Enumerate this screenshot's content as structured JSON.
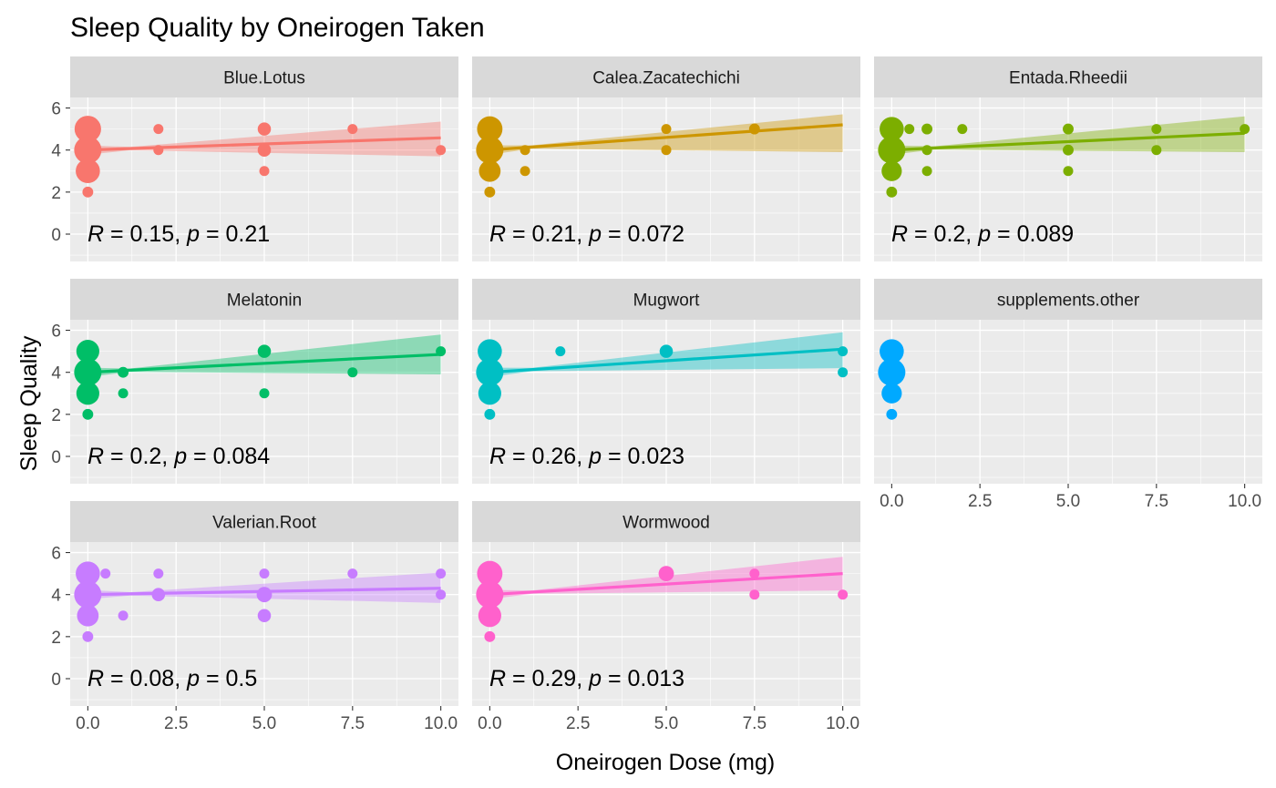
{
  "chart_data": {
    "type": "scatter",
    "title": "Sleep Quality by Oneirogen Taken",
    "xlabel": "Oneirogen Dose (mg)",
    "ylabel": "Sleep Quality",
    "xlim": [
      -0.5,
      10.5
    ],
    "ylim": [
      -1.3,
      6.5
    ],
    "x_ticks": [
      "0.0",
      "2.5",
      "5.0",
      "7.5",
      "10.0"
    ],
    "y_ticks": [
      "0",
      "2",
      "4",
      "6"
    ],
    "facet_layout": "3 columns, wrap",
    "grid": true,
    "legend": "none",
    "panels": [
      {
        "name": "Blue.Lotus",
        "color": "#F8766D",
        "stat": {
          "R": "0.15",
          "p": "0.21"
        },
        "fit": {
          "intercept": 4.0,
          "slope": 0.058,
          "ci_lo_end": 3.7,
          "ci_hi_end": 5.35
        },
        "points": [
          {
            "x": 0,
            "y": 5,
            "n": 12
          },
          {
            "x": 0,
            "y": 4,
            "n": 14
          },
          {
            "x": 0,
            "y": 3,
            "n": 10
          },
          {
            "x": 0,
            "y": 2,
            "n": 2
          },
          {
            "x": 2,
            "y": 5,
            "n": 1
          },
          {
            "x": 2,
            "y": 4,
            "n": 1
          },
          {
            "x": 5,
            "y": 5,
            "n": 3
          },
          {
            "x": 5,
            "y": 4,
            "n": 3
          },
          {
            "x": 5,
            "y": 3,
            "n": 1
          },
          {
            "x": 7.5,
            "y": 5,
            "n": 1
          },
          {
            "x": 10,
            "y": 4,
            "n": 1
          }
        ]
      },
      {
        "name": "Calea.Zacatechichi",
        "color": "#CD9600",
        "stat": {
          "R": "0.21",
          "p": "0.072"
        },
        "fit": {
          "intercept": 4.0,
          "slope": 0.12,
          "ci_lo_end": 3.9,
          "ci_hi_end": 5.7
        },
        "points": [
          {
            "x": 0,
            "y": 5,
            "n": 11
          },
          {
            "x": 0,
            "y": 4,
            "n": 13
          },
          {
            "x": 0,
            "y": 3,
            "n": 8
          },
          {
            "x": 0,
            "y": 2,
            "n": 2
          },
          {
            "x": 1,
            "y": 4,
            "n": 1
          },
          {
            "x": 1,
            "y": 3,
            "n": 1
          },
          {
            "x": 5,
            "y": 5,
            "n": 1
          },
          {
            "x": 5,
            "y": 4,
            "n": 1
          },
          {
            "x": 7.5,
            "y": 5,
            "n": 2
          }
        ]
      },
      {
        "name": "Entada.Rheedii",
        "color": "#7CAE00",
        "stat": {
          "R": "0.2",
          "p": "0.089"
        },
        "fit": {
          "intercept": 4.0,
          "slope": 0.08,
          "ci_lo_end": 3.9,
          "ci_hi_end": 5.6
        },
        "points": [
          {
            "x": 0,
            "y": 5,
            "n": 10
          },
          {
            "x": 0,
            "y": 4,
            "n": 14
          },
          {
            "x": 0,
            "y": 3,
            "n": 7
          },
          {
            "x": 0,
            "y": 2,
            "n": 2
          },
          {
            "x": 0.5,
            "y": 5,
            "n": 1
          },
          {
            "x": 1,
            "y": 5,
            "n": 2
          },
          {
            "x": 1,
            "y": 4,
            "n": 1
          },
          {
            "x": 1,
            "y": 3,
            "n": 1
          },
          {
            "x": 2,
            "y": 5,
            "n": 1
          },
          {
            "x": 5,
            "y": 5,
            "n": 2
          },
          {
            "x": 5,
            "y": 4,
            "n": 2
          },
          {
            "x": 5,
            "y": 3,
            "n": 1
          },
          {
            "x": 7.5,
            "y": 5,
            "n": 1
          },
          {
            "x": 7.5,
            "y": 4,
            "n": 1
          },
          {
            "x": 10,
            "y": 5,
            "n": 1
          }
        ]
      },
      {
        "name": "Melatonin",
        "color": "#00BE67",
        "stat": {
          "R": "0.2",
          "p": "0.084"
        },
        "fit": {
          "intercept": 4.0,
          "slope": 0.085,
          "ci_lo_end": 3.9,
          "ci_hi_end": 5.8
        },
        "points": [
          {
            "x": 0,
            "y": 5,
            "n": 9
          },
          {
            "x": 0,
            "y": 4,
            "n": 15
          },
          {
            "x": 0,
            "y": 3,
            "n": 9
          },
          {
            "x": 0,
            "y": 2,
            "n": 2
          },
          {
            "x": 1,
            "y": 4,
            "n": 2
          },
          {
            "x": 1,
            "y": 3,
            "n": 1
          },
          {
            "x": 5,
            "y": 5,
            "n": 3
          },
          {
            "x": 5,
            "y": 3,
            "n": 1
          },
          {
            "x": 7.5,
            "y": 4,
            "n": 1
          },
          {
            "x": 10,
            "y": 5,
            "n": 1
          }
        ]
      },
      {
        "name": "Mugwort",
        "color": "#00BFC4",
        "stat": {
          "R": "0.26",
          "p": "0.023"
        },
        "fit": {
          "intercept": 4.0,
          "slope": 0.11,
          "ci_lo_end": 4.2,
          "ci_hi_end": 5.9
        },
        "points": [
          {
            "x": 0,
            "y": 5,
            "n": 10
          },
          {
            "x": 0,
            "y": 4,
            "n": 15
          },
          {
            "x": 0,
            "y": 3,
            "n": 9
          },
          {
            "x": 0,
            "y": 2,
            "n": 2
          },
          {
            "x": 2,
            "y": 5,
            "n": 1
          },
          {
            "x": 5,
            "y": 5,
            "n": 3
          },
          {
            "x": 10,
            "y": 5,
            "n": 1
          },
          {
            "x": 10,
            "y": 4,
            "n": 1
          }
        ]
      },
      {
        "name": "supplements.other",
        "color": "#00A9FF",
        "stat": null,
        "fit": null,
        "points": [
          {
            "x": 0,
            "y": 5,
            "n": 10
          },
          {
            "x": 0,
            "y": 4,
            "n": 14
          },
          {
            "x": 0,
            "y": 3,
            "n": 7
          },
          {
            "x": 0,
            "y": 2,
            "n": 2
          }
        ]
      },
      {
        "name": "Valerian.Root",
        "color": "#C77CFF",
        "stat": {
          "R": "0.08",
          "p": "0.5"
        },
        "fit": {
          "intercept": 4.0,
          "slope": 0.03,
          "ci_lo_end": 3.6,
          "ci_hi_end": 5.05
        },
        "points": [
          {
            "x": 0,
            "y": 5,
            "n": 10
          },
          {
            "x": 0,
            "y": 4,
            "n": 13
          },
          {
            "x": 0,
            "y": 3,
            "n": 8
          },
          {
            "x": 0,
            "y": 2,
            "n": 2
          },
          {
            "x": 0.5,
            "y": 5,
            "n": 1
          },
          {
            "x": 1,
            "y": 3,
            "n": 1
          },
          {
            "x": 2,
            "y": 5,
            "n": 1
          },
          {
            "x": 2,
            "y": 4,
            "n": 3
          },
          {
            "x": 5,
            "y": 5,
            "n": 1
          },
          {
            "x": 5,
            "y": 4,
            "n": 4
          },
          {
            "x": 5,
            "y": 3,
            "n": 3
          },
          {
            "x": 7.5,
            "y": 5,
            "n": 1
          },
          {
            "x": 10,
            "y": 5,
            "n": 1
          },
          {
            "x": 10,
            "y": 4,
            "n": 1
          }
        ]
      },
      {
        "name": "Wormwood",
        "color": "#FF61CC",
        "stat": {
          "R": "0.29",
          "p": "0.013"
        },
        "fit": {
          "intercept": 4.0,
          "slope": 0.1,
          "ci_lo_end": 4.2,
          "ci_hi_end": 5.8
        },
        "points": [
          {
            "x": 0,
            "y": 5,
            "n": 11
          },
          {
            "x": 0,
            "y": 4,
            "n": 15
          },
          {
            "x": 0,
            "y": 3,
            "n": 9
          },
          {
            "x": 0,
            "y": 2,
            "n": 2
          },
          {
            "x": 5,
            "y": 5,
            "n": 4
          },
          {
            "x": 7.5,
            "y": 5,
            "n": 1
          },
          {
            "x": 7.5,
            "y": 4,
            "n": 1
          },
          {
            "x": 10,
            "y": 4,
            "n": 1
          }
        ]
      }
    ]
  }
}
